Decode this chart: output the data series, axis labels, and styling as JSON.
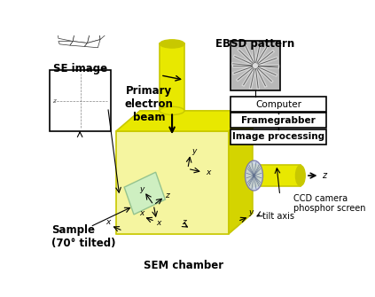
{
  "bg_color": "#ffffff",
  "fig_width": 4.23,
  "fig_height": 3.35,
  "labels": {
    "ebsd_pattern": "EBSD pattern",
    "se_image": "SE image",
    "primary_beam": "Primary\nelectron\nbeam",
    "computer": "Computer",
    "framegrabber": "Framegrabber",
    "image_processing": "Image processing",
    "ccd_camera": "CCD camera\nphosphor screen",
    "tilt_axis": "tilt axis",
    "sem_chamber": "SEM chamber",
    "sample": "Sample\n(70° tilted)"
  },
  "yellow": "#e8e800",
  "yellow_dark": "#c8c800",
  "yellow_light": "#f5f5a0",
  "yellow_side": "#d4d400",
  "green_sample": "#c8eec8",
  "green_sample_edge": "#88bb88",
  "blue_screen": "#b8c8e0",
  "gray_ebsd": "#c0c0c0",
  "black": "#000000",
  "white": "#ffffff"
}
